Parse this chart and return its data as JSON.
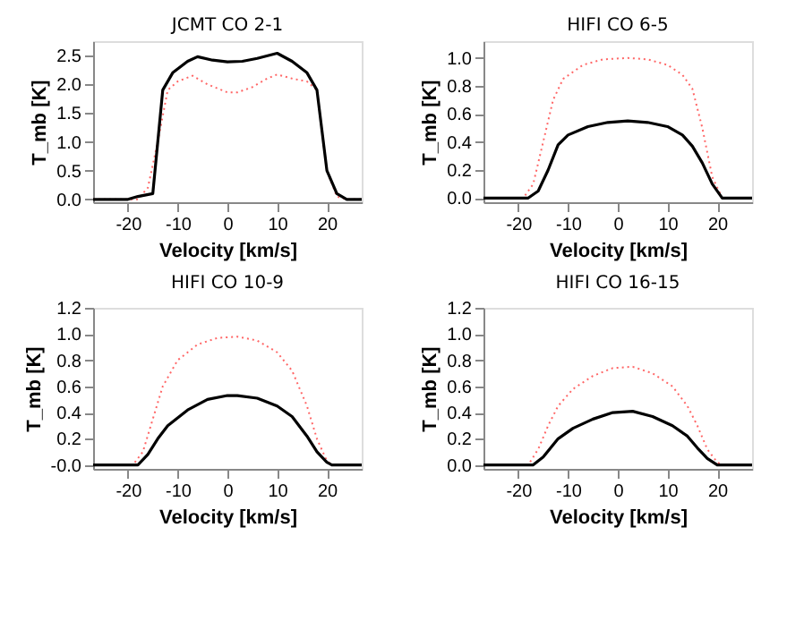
{
  "chart_data": [
    {
      "type": "line",
      "title": "JCMT CO 2-1",
      "xlabel": "Velocity [km/s]",
      "ylabel": "T_mb [K]",
      "xlim": [
        -27,
        27
      ],
      "xticks": [
        -20,
        -10,
        0,
        10,
        20
      ],
      "ylim": [
        -0.05,
        2.75
      ],
      "yticks": [
        {
          "value": 0,
          "label": "0.0"
        },
        {
          "value": 0.5,
          "label": "0.5"
        },
        {
          "value": 1,
          "label": "1.0"
        },
        {
          "value": 1.5,
          "label": "1.5"
        },
        {
          "value": 2,
          "label": "2.0"
        },
        {
          "value": 2.5,
          "label": "2.5"
        }
      ],
      "grid": false,
      "series": [
        {
          "color": "#000000",
          "line_style": "solid",
          "x": [
            -27,
            -20,
            -18,
            -15,
            -13,
            -11,
            -8,
            -6,
            -3,
            0,
            3,
            6,
            10,
            13,
            16,
            18,
            20,
            22,
            24,
            27
          ],
          "values": [
            0,
            0,
            0.05,
            0.1,
            1.9,
            2.2,
            2.4,
            2.48,
            2.42,
            2.39,
            2.4,
            2.45,
            2.54,
            2.4,
            2.2,
            1.9,
            0.5,
            0.1,
            0,
            0
          ]
        },
        {
          "color": "#ff6666",
          "line_style": "dotted",
          "x": [
            -27,
            -18,
            -16,
            -14,
            -12,
            -10,
            -7,
            -4,
            0,
            2,
            5,
            8,
            10,
            13,
            16,
            18,
            20,
            22,
            24,
            27
          ],
          "values": [
            0,
            0,
            0.2,
            1.0,
            1.9,
            2.05,
            2.15,
            2.0,
            1.86,
            1.86,
            1.95,
            2.1,
            2.17,
            2.1,
            2.05,
            1.9,
            0.5,
            0.05,
            0,
            0
          ]
        }
      ]
    },
    {
      "type": "line",
      "title": "HIFI CO 6-5",
      "xlabel": "Velocity [km/s]",
      "ylabel": "T_mb [K]",
      "xlim": [
        -27,
        27
      ],
      "xticks": [
        -20,
        -10,
        0,
        10,
        20
      ],
      "ylim": [
        -0.03,
        1.12
      ],
      "yticks": [
        {
          "value": 0,
          "label": "0.0"
        },
        {
          "value": 0.2,
          "label": "0.2"
        },
        {
          "value": 0.4,
          "label": "0.4"
        },
        {
          "value": 0.6,
          "label": "0.6"
        },
        {
          "value": 0.8,
          "label": "0.8"
        },
        {
          "value": 1,
          "label": "1.0"
        }
      ],
      "grid": false,
      "series": [
        {
          "color": "#000000",
          "line_style": "solid",
          "x": [
            -27,
            -18,
            -16,
            -14,
            -12,
            -10,
            -6,
            -2,
            2,
            6,
            10,
            13,
            15,
            17,
            19,
            21,
            27
          ],
          "values": [
            0,
            0,
            0.05,
            0.2,
            0.38,
            0.45,
            0.51,
            0.54,
            0.55,
            0.54,
            0.51,
            0.45,
            0.37,
            0.25,
            0.1,
            0,
            0
          ]
        },
        {
          "color": "#ff6666",
          "line_style": "dotted",
          "x": [
            -27,
            -19,
            -17,
            -15,
            -13,
            -11,
            -7,
            -3,
            2,
            6,
            10,
            13,
            15,
            17,
            19,
            21,
            27
          ],
          "values": [
            0,
            0,
            0.1,
            0.4,
            0.7,
            0.85,
            0.95,
            0.99,
            1.0,
            0.99,
            0.95,
            0.88,
            0.78,
            0.5,
            0.15,
            0,
            0
          ]
        }
      ]
    },
    {
      "type": "line",
      "title": "HIFI CO 10-9",
      "xlabel": "Velocity [km/s]",
      "ylabel": "T_mb [K]",
      "xlim": [
        -27,
        27
      ],
      "xticks": [
        -20,
        -10,
        0,
        10,
        20
      ],
      "ylim": [
        -0.03,
        1.2
      ],
      "yticks": [
        {
          "value": 0,
          "label": "-0.0"
        },
        {
          "value": 0.2,
          "label": "0.2"
        },
        {
          "value": 0.4,
          "label": "0.4"
        },
        {
          "value": 0.6,
          "label": "0.6"
        },
        {
          "value": 0.8,
          "label": "0.8"
        },
        {
          "value": 1,
          "label": "1.0"
        },
        {
          "value": 1.2,
          "label": "1.2"
        }
      ],
      "grid": false,
      "series": [
        {
          "color": "#000000",
          "line_style": "solid",
          "x": [
            -27,
            -18,
            -16,
            -14,
            -12,
            -8,
            -4,
            0,
            2,
            6,
            10,
            13,
            16,
            18,
            20,
            21,
            27
          ],
          "values": [
            0,
            0,
            0.08,
            0.2,
            0.3,
            0.42,
            0.5,
            0.53,
            0.53,
            0.51,
            0.45,
            0.37,
            0.22,
            0.1,
            0.02,
            0,
            0
          ]
        },
        {
          "color": "#ff6666",
          "line_style": "dotted",
          "x": [
            -27,
            -19,
            -17,
            -15,
            -13,
            -10,
            -6,
            -2,
            2,
            6,
            10,
            13,
            16,
            18,
            20,
            21,
            27
          ],
          "values": [
            0,
            0,
            0.1,
            0.35,
            0.6,
            0.8,
            0.92,
            0.97,
            0.98,
            0.95,
            0.86,
            0.72,
            0.45,
            0.2,
            0.03,
            0,
            0
          ]
        }
      ]
    },
    {
      "type": "line",
      "title": "HIFI CO 16-15",
      "xlabel": "Velocity [km/s]",
      "ylabel": "T_mb [K]",
      "xlim": [
        -27,
        27
      ],
      "xticks": [
        -20,
        -10,
        0,
        10,
        20
      ],
      "ylim": [
        -0.03,
        1.2
      ],
      "yticks": [
        {
          "value": 0,
          "label": "0.0"
        },
        {
          "value": 0.2,
          "label": "0.2"
        },
        {
          "value": 0.4,
          "label": "0.4"
        },
        {
          "value": 0.6,
          "label": "0.6"
        },
        {
          "value": 0.8,
          "label": "0.8"
        },
        {
          "value": 1,
          "label": "1.0"
        },
        {
          "value": 1.2,
          "label": "1.2"
        }
      ],
      "grid": false,
      "series": [
        {
          "color": "#000000",
          "line_style": "solid",
          "x": [
            -27,
            -17,
            -15,
            -12,
            -9,
            -5,
            -1,
            3,
            7,
            11,
            14,
            16,
            18,
            20,
            27
          ],
          "values": [
            0,
            0,
            0.06,
            0.2,
            0.28,
            0.35,
            0.4,
            0.41,
            0.37,
            0.3,
            0.22,
            0.13,
            0.05,
            0,
            0
          ]
        },
        {
          "color": "#ff6666",
          "line_style": "dotted",
          "x": [
            -27,
            -18,
            -16,
            -14,
            -12,
            -9,
            -5,
            -1,
            3,
            7,
            11,
            14,
            16,
            18,
            20,
            21,
            27
          ],
          "values": [
            0,
            0,
            0.12,
            0.3,
            0.45,
            0.58,
            0.68,
            0.74,
            0.75,
            0.7,
            0.6,
            0.45,
            0.3,
            0.12,
            0.02,
            0,
            0
          ]
        }
      ]
    }
  ]
}
